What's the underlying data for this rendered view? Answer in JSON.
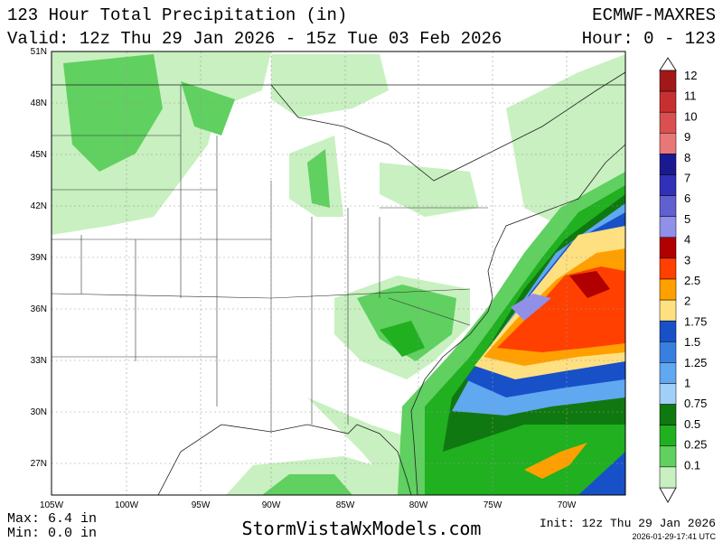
{
  "header": {
    "title": "123 Hour Total Precipitation (in)",
    "valid": "Valid: 12z Thu 29 Jan 2026 - 15z Tue 03 Feb 2026",
    "model": "ECMWF-MAXRES",
    "hours": "Hour: 0 - 123"
  },
  "map": {
    "lat_labels": [
      "51N",
      "48N",
      "45N",
      "42N",
      "39N",
      "36N",
      "33N",
      "30N",
      "27N"
    ],
    "lon_labels": [
      "105W",
      "100W",
      "95W",
      "90W",
      "85W",
      "80W",
      "75W",
      "70W"
    ]
  },
  "colorbar": {
    "items": [
      {
        "label": "12",
        "color": "#a01818"
      },
      {
        "label": "11",
        "color": "#c83030"
      },
      {
        "label": "10",
        "color": "#d85050"
      },
      {
        "label": "9",
        "color": "#e87878"
      },
      {
        "label": "8",
        "color": "#1a1a90"
      },
      {
        "label": "7",
        "color": "#3030b8"
      },
      {
        "label": "6",
        "color": "#6060d0"
      },
      {
        "label": "5",
        "color": "#9090e8"
      },
      {
        "label": "4",
        "color": "#b00000"
      },
      {
        "label": "3",
        "color": "#ff4000"
      },
      {
        "label": "2.5",
        "color": "#ffa000"
      },
      {
        "label": "2",
        "color": "#ffe080"
      },
      {
        "label": "1.75",
        "color": "#1850c8"
      },
      {
        "label": "1.5",
        "color": "#3880e0"
      },
      {
        "label": "1.25",
        "color": "#60a8f0"
      },
      {
        "label": "1",
        "color": "#a0d0f8"
      },
      {
        "label": "0.75",
        "color": "#107810"
      },
      {
        "label": "0.5",
        "color": "#20b020"
      },
      {
        "label": "0.25",
        "color": "#60d060"
      },
      {
        "label": "0.1",
        "color": "#c8f0c0"
      }
    ]
  },
  "footer": {
    "max": "Max: 6.4 in",
    "min": "Min: 0.0 in",
    "site": "StormVistaWxModels.com",
    "init": "Init: 12z Thu 29 Jan 2026",
    "stamp": "2026-01-29-17:41 UTC"
  }
}
